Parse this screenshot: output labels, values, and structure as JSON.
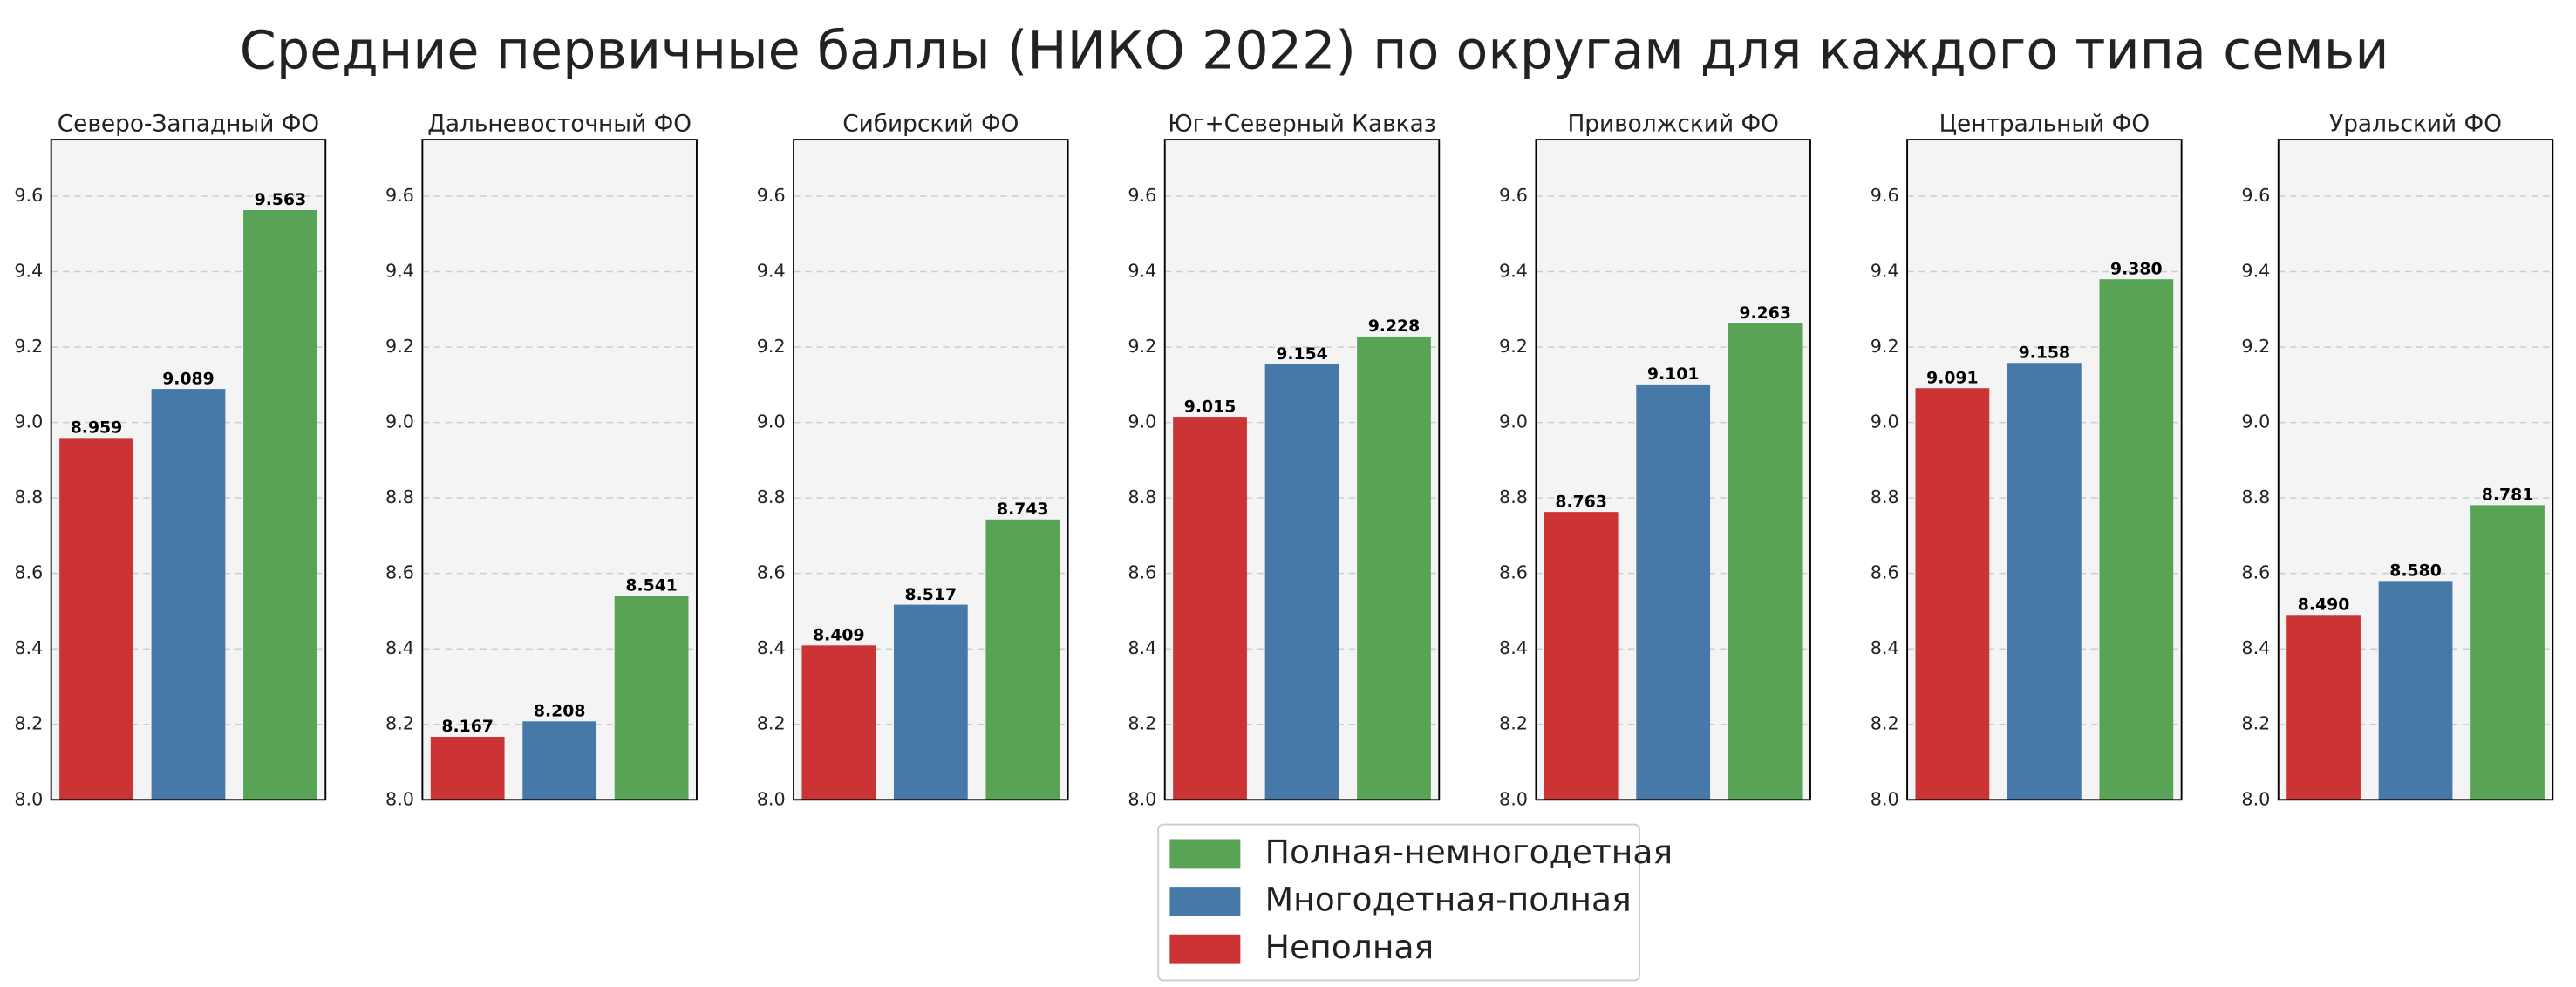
{
  "chart_data": {
    "type": "bar",
    "facet": true,
    "title": "Средние первичные баллы (НИКО 2022) по округам для каждого типа семьи",
    "categories": [
      "Северо-Западный ФО",
      "Дальневосточный ФО",
      "Сибирский ФО",
      "Юг+Северный Кавказ",
      "Приволжский ФО",
      "Центральный ФО",
      "Уральский ФО"
    ],
    "series": [
      {
        "name": "Неполная",
        "color": "#cb3335",
        "values": [
          8.959,
          8.167,
          8.409,
          9.015,
          8.763,
          9.091,
          8.49
        ],
        "value_labels": [
          "8.959",
          "8.167",
          "8.409",
          "9.015",
          "8.763",
          "9.091",
          "8.490"
        ]
      },
      {
        "name": "Многодетная-полная",
        "color": "#4779a8",
        "values": [
          9.089,
          8.208,
          8.517,
          9.154,
          9.101,
          9.158,
          8.58
        ],
        "value_labels": [
          "9.089",
          "8.208",
          "8.517",
          "9.154",
          "9.101",
          "9.158",
          "8.580"
        ]
      },
      {
        "name": "Полная-немногодетная",
        "color": "#59a357",
        "values": [
          9.563,
          8.541,
          8.743,
          9.228,
          9.263,
          9.38,
          8.781
        ],
        "value_labels": [
          "9.563",
          "8.541",
          "8.743",
          "9.228",
          "9.263",
          "9.380",
          "8.781"
        ]
      }
    ],
    "ylim": [
      8.0,
      9.75
    ],
    "yticks": [
      {
        "value": 8.0,
        "label": "8.0"
      },
      {
        "value": 8.2,
        "label": "8.2"
      },
      {
        "value": 8.4,
        "label": "8.4"
      },
      {
        "value": 8.6,
        "label": "8.6"
      },
      {
        "value": 8.8,
        "label": "8.8"
      },
      {
        "value": 9.0,
        "label": "9.0"
      },
      {
        "value": 9.2,
        "label": "9.2"
      },
      {
        "value": 9.4,
        "label": "9.4"
      },
      {
        "value": 9.6,
        "label": "9.6"
      }
    ],
    "grid": true,
    "legend": "bottom"
  }
}
